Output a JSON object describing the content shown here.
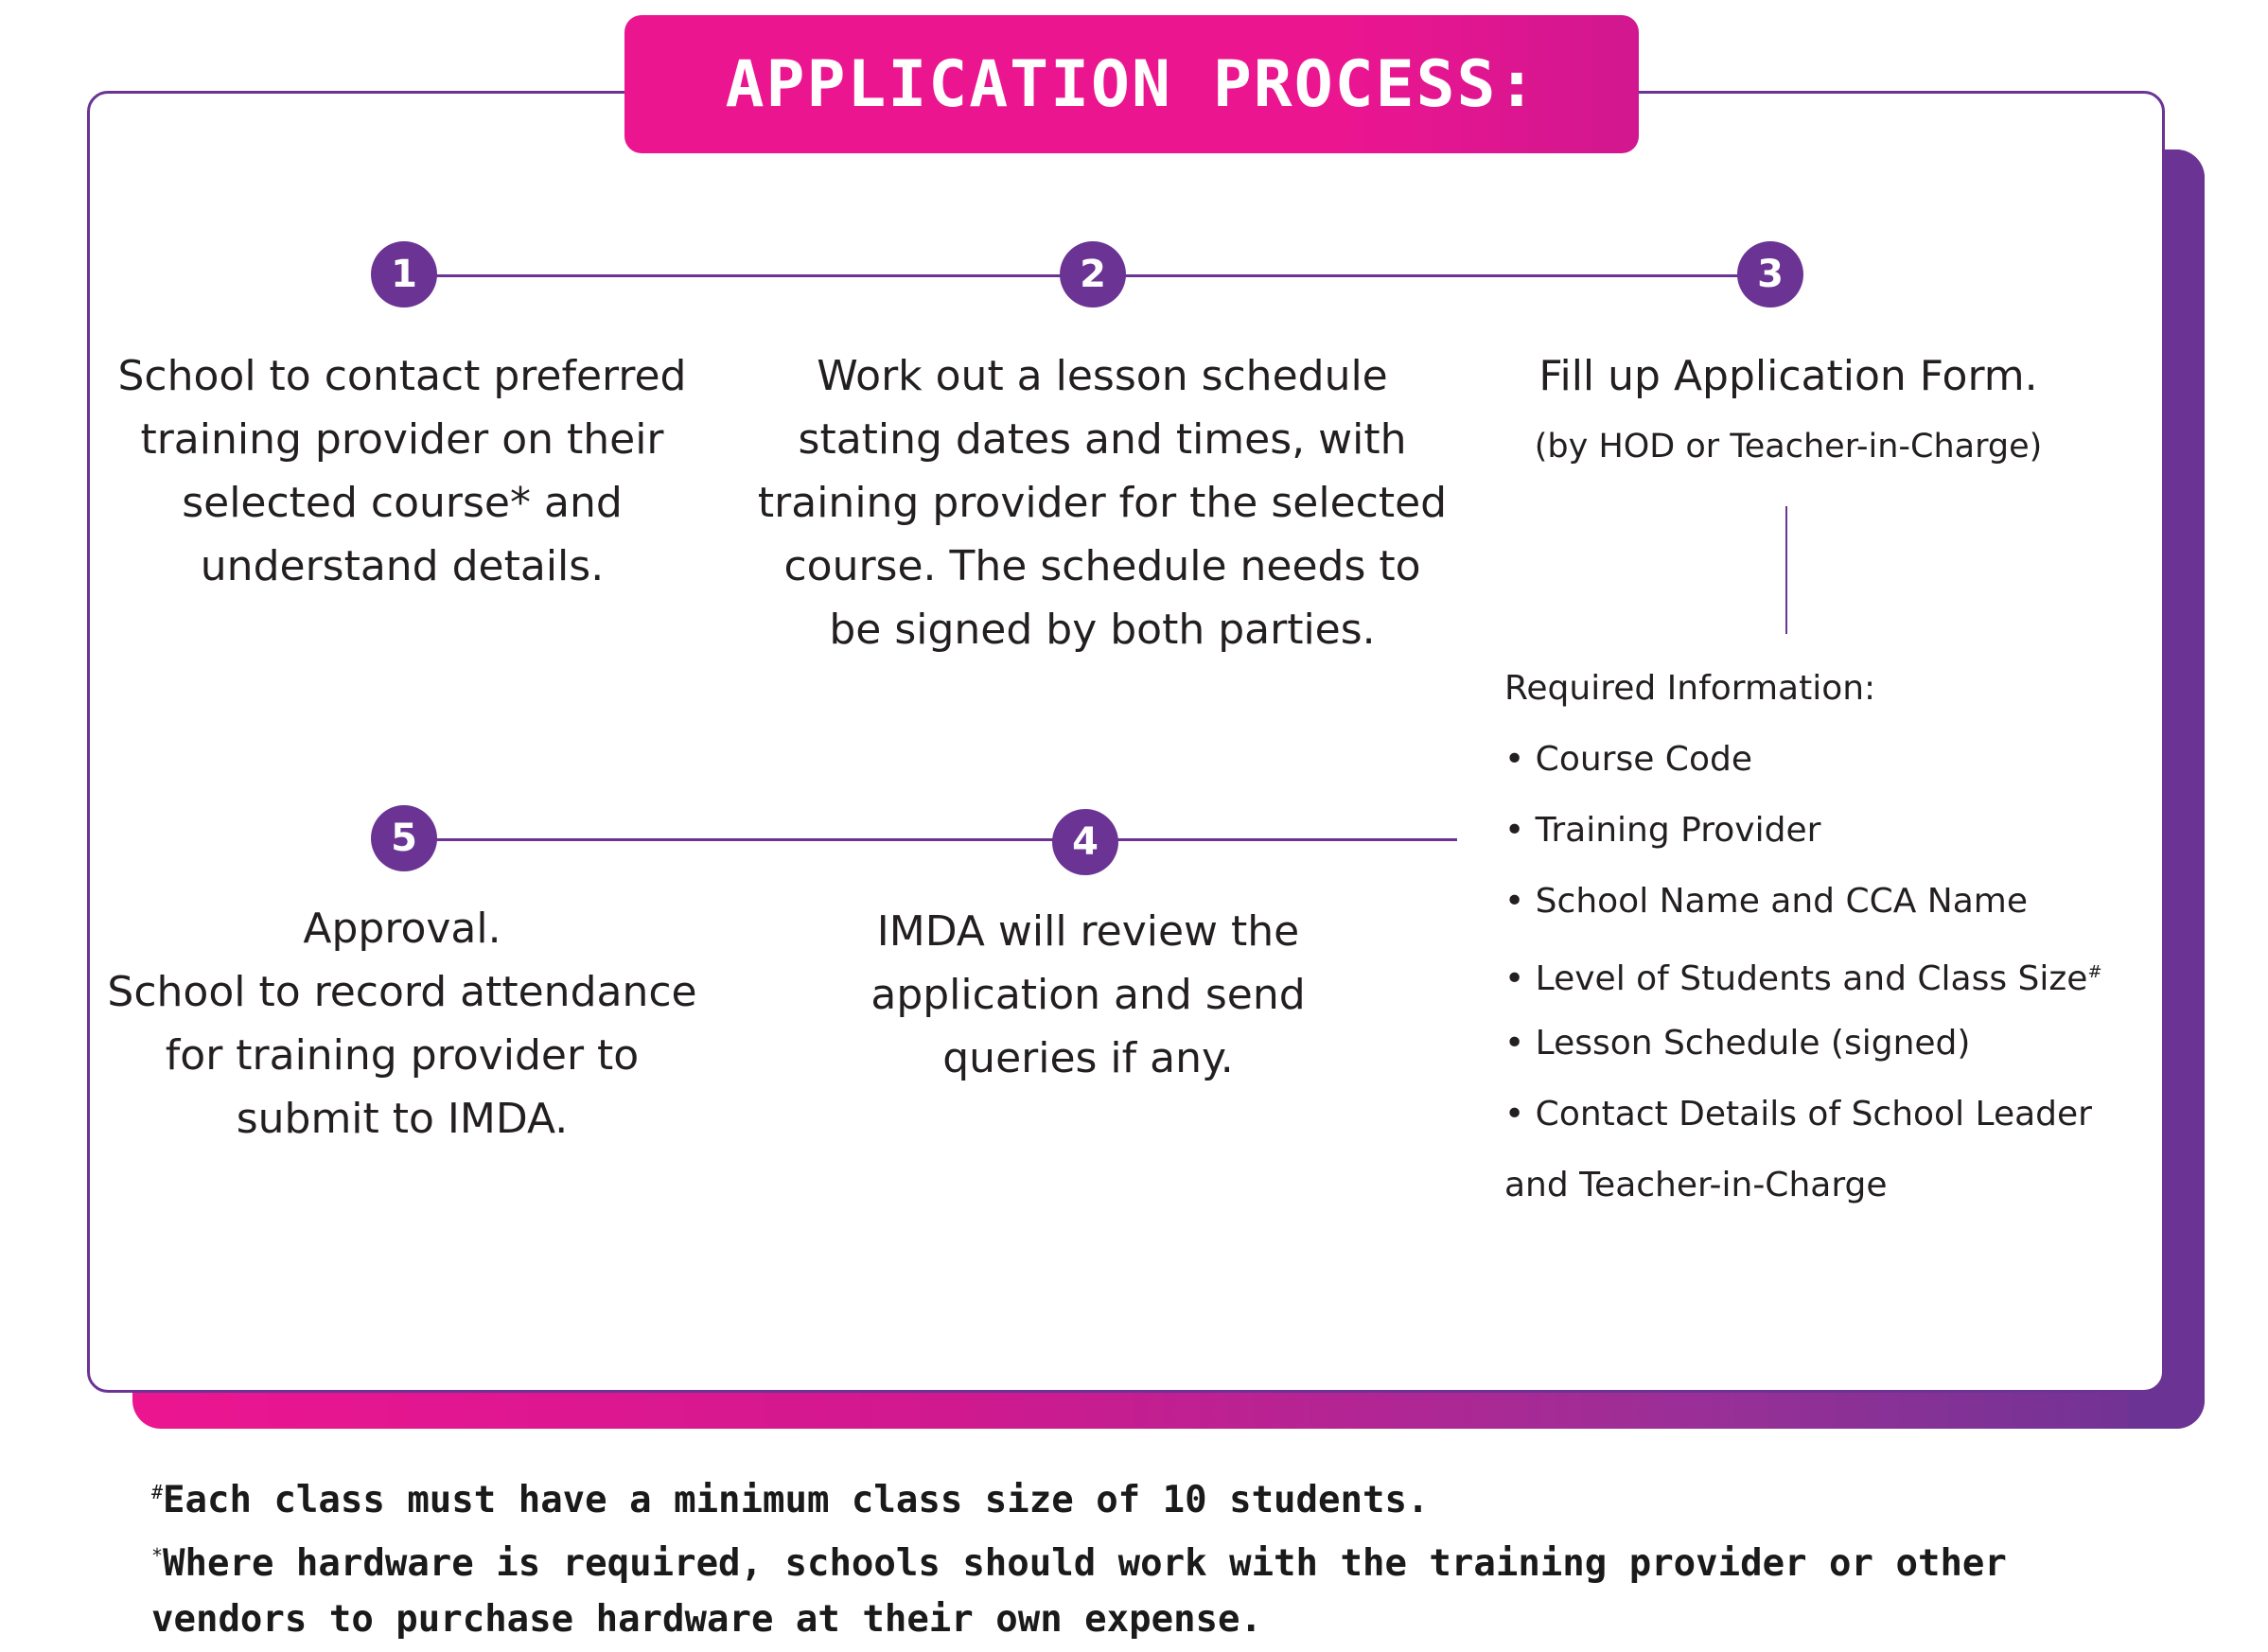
{
  "title": "APPLICATION PROCESS:",
  "colors": {
    "magenta": "#ec1590",
    "purple": "#6b3494",
    "text": "#231f20"
  },
  "steps": [
    {
      "number": "1",
      "lines": [
        "School to contact preferred",
        "training provider on their",
        "selected course* and",
        "understand details."
      ]
    },
    {
      "number": "2",
      "lines": [
        "Work out a lesson schedule",
        "stating dates and times, with",
        "training provider for the selected",
        "course. The schedule needs to",
        "be signed by both parties."
      ]
    },
    {
      "number": "3",
      "lines": [
        "Fill up Application Form."
      ],
      "sub": "(by HOD or Teacher-in-Charge)"
    },
    {
      "number": "4",
      "lines": [
        "IMDA will review the",
        "application and send",
        "queries if any."
      ]
    },
    {
      "number": "5",
      "lines": [
        "Approval.",
        "School to record attendance",
        "for training provider to",
        "submit to IMDA."
      ]
    }
  ],
  "required_info": {
    "heading": "Required Information:",
    "items": [
      "• Course Code",
      "• Training Provider",
      "• School Name and CCA Name",
      "• Level of Students and Class Size",
      "• Lesson Schedule (signed)",
      "• Contact Details of School Leader",
      "and Teacher-in-Charge"
    ],
    "class_size_mark": "#"
  },
  "footnotes": [
    {
      "mark": "#",
      "text": "Each class must have a minimum class size of 10 students."
    },
    {
      "mark": "*",
      "text": "Where hardware is required, schools should work with the training provider or other"
    },
    {
      "mark": "",
      "text": "vendors to purchase hardware at their own expense."
    }
  ]
}
